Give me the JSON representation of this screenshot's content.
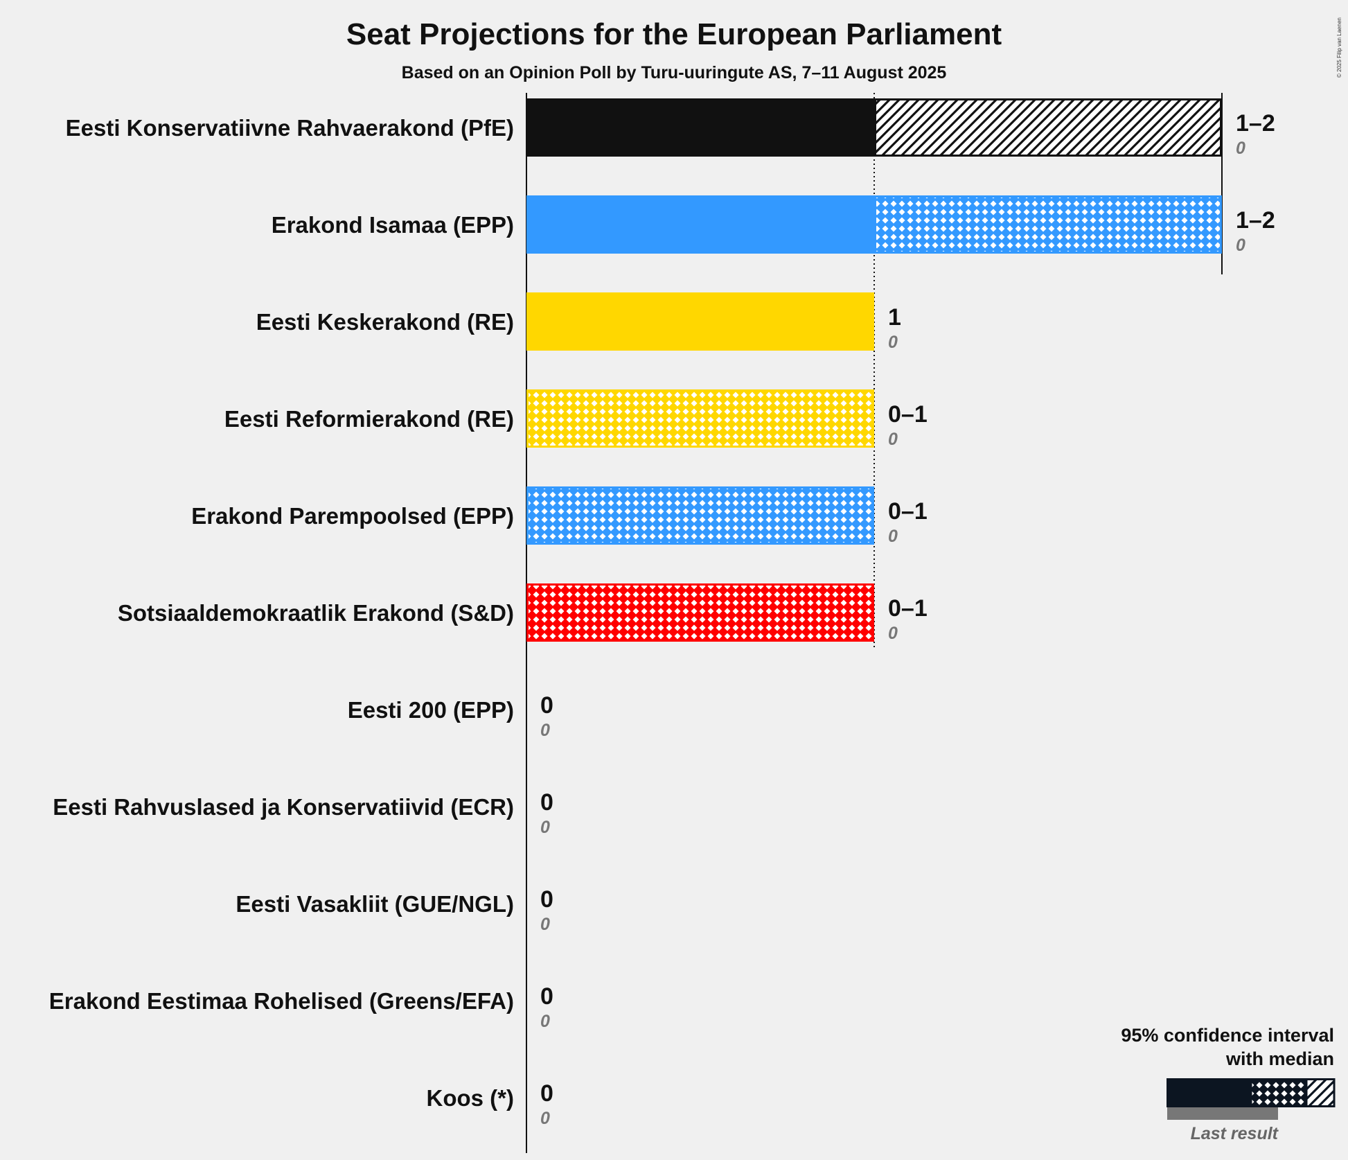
{
  "title": "Seat Projections for the European Parliament",
  "subtitle": "Based on an Opinion Poll by Turu-uuringute AS, 7–11 August 2025",
  "copyright": "© 2025 Filip van Laenen",
  "legend": {
    "line1": "95% confidence interval",
    "line2": "with median",
    "last_result": "Last result"
  },
  "chart_data": {
    "type": "bar",
    "orientation": "horizontal",
    "title": "Seat Projections for the European Parliament",
    "subtitle": "Based on an Opinion Poll by Turu-uuringute AS, 7–11 August 2025",
    "xlim": [
      0,
      2
    ],
    "majority_line": 1,
    "parties": [
      {
        "name": "Eesti Konservatiivne Rahvaerakond (PfE)",
        "low": 1,
        "median": 1,
        "high": 2,
        "label": "1–2",
        "last": "0",
        "color": "#111111",
        "fill": "diagonal"
      },
      {
        "name": "Erakond Isamaa (EPP)",
        "low": 1,
        "median": 1,
        "high": 2,
        "label": "1–2",
        "last": "0",
        "color": "#3399FF",
        "fill": "crosshatch"
      },
      {
        "name": "Eesti Keskerakond (RE)",
        "low": 1,
        "median": 1,
        "high": 1,
        "label": "1",
        "last": "0",
        "color": "#FFD700",
        "fill": "solid"
      },
      {
        "name": "Eesti Reformierakond (RE)",
        "low": 0,
        "median": 1,
        "high": 1,
        "label": "0–1",
        "last": "0",
        "color": "#FFD700",
        "fill": "crosshatch"
      },
      {
        "name": "Erakond Parempoolsed (EPP)",
        "low": 0,
        "median": 1,
        "high": 1,
        "label": "0–1",
        "last": "0",
        "color": "#3399FF",
        "fill": "crosshatch"
      },
      {
        "name": "Sotsiaaldemokraatlik Erakond (S&D)",
        "low": 0,
        "median": 1,
        "high": 1,
        "label": "0–1",
        "last": "0",
        "color": "#FF0000",
        "fill": "crosshatch"
      },
      {
        "name": "Eesti 200 (EPP)",
        "low": 0,
        "median": 0,
        "high": 0,
        "label": "0",
        "last": "0",
        "color": "#3399FF",
        "fill": "none"
      },
      {
        "name": "Eesti Rahvuslased ja Konservatiivid (ECR)",
        "low": 0,
        "median": 0,
        "high": 0,
        "label": "0",
        "last": "0",
        "color": "#0054A5",
        "fill": "none"
      },
      {
        "name": "Eesti Vasakliit (GUE/NGL)",
        "low": 0,
        "median": 0,
        "high": 0,
        "label": "0",
        "last": "0",
        "color": "#8B0000",
        "fill": "none"
      },
      {
        "name": "Erakond Eestimaa Rohelised (Greens/EFA)",
        "low": 0,
        "median": 0,
        "high": 0,
        "label": "0",
        "last": "0",
        "color": "#57A830",
        "fill": "none"
      },
      {
        "name": "Koos (*)",
        "low": 0,
        "median": 0,
        "high": 0,
        "label": "0",
        "last": "0",
        "color": "#888888",
        "fill": "none"
      }
    ]
  }
}
